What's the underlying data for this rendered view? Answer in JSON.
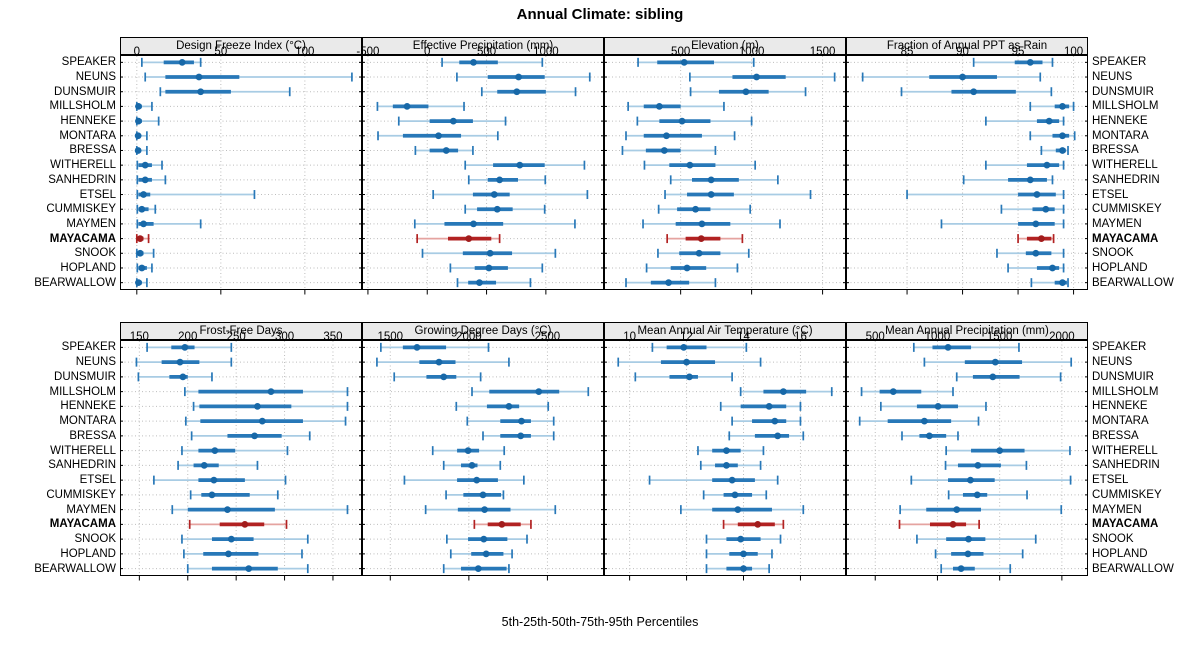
{
  "title": "Annual Climate: sibling",
  "footer": "5th-25th-50th-75th-95th Percentiles",
  "highlight_site": "MAYACAMA",
  "sites": [
    "SPEAKER",
    "NEUNS",
    "DUNSMUIR",
    "MILLSHOLM",
    "HENNEKE",
    "MONTARA",
    "BRESSA",
    "WITHERELL",
    "SANHEDRIN",
    "ETSEL",
    "CUMMISKEY",
    "MAYMEN",
    "MAYACAMA",
    "SNOOK",
    "HOPLAND",
    "BEARWALLOW"
  ],
  "colors": {
    "blue": "#2878B8",
    "blue_light": "#A8CCE4",
    "blue_dot": "#1768A8",
    "red": "#B22222",
    "red_light": "#E5A3A0",
    "red_dot": "#A21C1C",
    "strip_bg": "#EAEAEA",
    "panel_border": "#000000",
    "grid": "#BDBDBD"
  },
  "chart_data": [
    {
      "type": "dotplot-percentiles",
      "row": 0,
      "col": 0,
      "title": "Design Freeze Index (°C)",
      "percentiles": [
        5,
        25,
        50,
        75,
        95
      ],
      "xlim": [
        -10,
        134
      ],
      "ticks": [
        0,
        50,
        100
      ],
      "values": [
        [
          3,
          16,
          27,
          34,
          38
        ],
        [
          5,
          17,
          37,
          61,
          128
        ],
        [
          14,
          17,
          38,
          56,
          91
        ],
        [
          0,
          0.5,
          1,
          3,
          9
        ],
        [
          0,
          0.5,
          1,
          3,
          13
        ],
        [
          0,
          0.3,
          0.8,
          2,
          6
        ],
        [
          0,
          0.3,
          0.8,
          2,
          6
        ],
        [
          0.3,
          1,
          5,
          9,
          15
        ],
        [
          0.3,
          1,
          5,
          9,
          17
        ],
        [
          0.3,
          1,
          4,
          8,
          70
        ],
        [
          0.3,
          1,
          3,
          7,
          11
        ],
        [
          0.3,
          1,
          4,
          10,
          38
        ],
        [
          0,
          0.5,
          2,
          4,
          7
        ],
        [
          0,
          0.5,
          2,
          4,
          10
        ],
        [
          0.3,
          1,
          3,
          6,
          9
        ],
        [
          0,
          0.3,
          1,
          3,
          6
        ]
      ]
    },
    {
      "type": "dotplot-percentiles",
      "row": 0,
      "col": 1,
      "title": "Effective Precipitation (mm)",
      "percentiles": [
        5,
        25,
        50,
        75,
        95
      ],
      "xlim": [
        -550,
        1490
      ],
      "ticks": [
        -500,
        0,
        500,
        1000
      ],
      "values": [
        [
          125,
          270,
          390,
          595,
          970
        ],
        [
          250,
          510,
          770,
          990,
          1370
        ],
        [
          460,
          590,
          755,
          1000,
          1250
        ],
        [
          -420,
          -290,
          -170,
          10,
          310
        ],
        [
          -240,
          20,
          220,
          385,
          660
        ],
        [
          -415,
          -205,
          95,
          285,
          595
        ],
        [
          -100,
          20,
          160,
          260,
          385
        ],
        [
          320,
          555,
          780,
          990,
          1325
        ],
        [
          350,
          510,
          610,
          765,
          995
        ],
        [
          50,
          385,
          565,
          695,
          1350
        ],
        [
          320,
          420,
          590,
          720,
          990
        ],
        [
          -105,
          145,
          390,
          640,
          1245
        ],
        [
          -85,
          175,
          350,
          540,
          610
        ],
        [
          -40,
          300,
          530,
          715,
          1080
        ],
        [
          195,
          400,
          520,
          680,
          970
        ],
        [
          255,
          345,
          440,
          580,
          870
        ]
      ]
    },
    {
      "type": "dotplot-percentiles",
      "row": 0,
      "col": 2,
      "title": "Elevation (m)",
      "percentiles": [
        5,
        25,
        50,
        75,
        95
      ],
      "xlim": [
        -40,
        1665
      ],
      "ticks": [
        500,
        1000,
        1500
      ],
      "values": [
        [
          200,
          335,
          525,
          735,
          1015
        ],
        [
          565,
          865,
          1035,
          1240,
          1585
        ],
        [
          570,
          770,
          960,
          1120,
          1380
        ],
        [
          130,
          240,
          350,
          500,
          805
        ],
        [
          195,
          350,
          510,
          710,
          1000
        ],
        [
          115,
          240,
          400,
          650,
          880
        ],
        [
          90,
          255,
          385,
          500,
          745
        ],
        [
          245,
          420,
          565,
          745,
          1025
        ],
        [
          430,
          580,
          715,
          910,
          1185
        ],
        [
          390,
          545,
          715,
          875,
          1415
        ],
        [
          345,
          475,
          605,
          710,
          990
        ],
        [
          235,
          465,
          650,
          850,
          1200
        ],
        [
          405,
          535,
          645,
          780,
          935
        ],
        [
          340,
          490,
          630,
          780,
          980
        ],
        [
          260,
          430,
          545,
          680,
          900
        ],
        [
          115,
          290,
          415,
          560,
          745
        ]
      ]
    },
    {
      "type": "dotplot-percentiles",
      "row": 0,
      "col": 3,
      "title": "Fraction of Annual PPT as Rain",
      "percentiles": [
        5,
        25,
        50,
        75,
        95
      ],
      "xlim": [
        79.5,
        101.3
      ],
      "ticks": [
        85,
        90,
        95,
        100
      ],
      "values": [
        [
          91,
          94.7,
          96.1,
          97.2,
          98.1
        ],
        [
          81,
          87,
          90,
          93.1,
          97
        ],
        [
          84.5,
          89,
          91,
          94.8,
          98
        ],
        [
          96.1,
          98.3,
          99,
          99.6,
          100
        ],
        [
          92.1,
          96.7,
          97.8,
          98.7,
          99.1
        ],
        [
          96.1,
          98.1,
          99,
          99.6,
          100.1
        ],
        [
          97.1,
          98.4,
          99,
          99.3,
          99.5
        ],
        [
          92.1,
          95.8,
          97.6,
          98.7,
          99.1
        ],
        [
          90.1,
          94.1,
          96.1,
          97.6,
          98.1
        ],
        [
          85,
          95,
          96.7,
          98.4,
          99.1
        ],
        [
          93.5,
          96.3,
          97.5,
          98.3,
          99.1
        ],
        [
          88.1,
          95,
          96.6,
          98.3,
          99.1
        ],
        [
          95,
          95.8,
          97.1,
          98,
          98.2
        ],
        [
          93.1,
          95.7,
          96.6,
          98,
          99.1
        ],
        [
          94.1,
          96.7,
          98.1,
          98.7,
          99.1
        ],
        [
          96.2,
          98.3,
          99,
          99.4,
          99.5
        ]
      ]
    },
    {
      "type": "dotplot-percentiles",
      "row": 1,
      "col": 0,
      "title": "Frost-Free Days",
      "percentiles": [
        5,
        25,
        50,
        75,
        95
      ],
      "xlim": [
        130,
        380
      ],
      "ticks": [
        150,
        200,
        250,
        300,
        350
      ],
      "values": [
        [
          158,
          183,
          197,
          207,
          245
        ],
        [
          147,
          173,
          192,
          212,
          245
        ],
        [
          149,
          181,
          195,
          200,
          225
        ],
        [
          197,
          211,
          286,
          319,
          365
        ],
        [
          206,
          212,
          272,
          307,
          365
        ],
        [
          198,
          213,
          277,
          319,
          363
        ],
        [
          204,
          241,
          269,
          297,
          326
        ],
        [
          194,
          211,
          228,
          249,
          303
        ],
        [
          190,
          206,
          217,
          232,
          272
        ],
        [
          165,
          211,
          227,
          259,
          301
        ],
        [
          203,
          214,
          225,
          264,
          293
        ],
        [
          184,
          200,
          241,
          290,
          365
        ],
        [
          202,
          233,
          259,
          279,
          302
        ],
        [
          194,
          225,
          245,
          268,
          324
        ],
        [
          196,
          216,
          242,
          273,
          318
        ],
        [
          200,
          225,
          263,
          293,
          324
        ]
      ]
    },
    {
      "type": "dotplot-percentiles",
      "row": 1,
      "col": 1,
      "title": "Growing Degree Days (°C)",
      "percentiles": [
        5,
        25,
        50,
        75,
        95
      ],
      "xlim": [
        1320,
        2860
      ],
      "ticks": [
        1500,
        2000,
        2500
      ],
      "values": [
        [
          1440,
          1580,
          1670,
          1855,
          2125
        ],
        [
          1415,
          1685,
          1810,
          1915,
          2255
        ],
        [
          1525,
          1730,
          1840,
          1920,
          2075
        ],
        [
          2020,
          2130,
          2445,
          2575,
          2760
        ],
        [
          1920,
          2115,
          2255,
          2320,
          2505
        ],
        [
          1990,
          2200,
          2335,
          2395,
          2540
        ],
        [
          2090,
          2200,
          2330,
          2395,
          2540
        ],
        [
          1770,
          1925,
          1995,
          2065,
          2225
        ],
        [
          1840,
          1950,
          2020,
          2055,
          2200
        ],
        [
          1590,
          1925,
          2050,
          2185,
          2350
        ],
        [
          1855,
          1965,
          2090,
          2205,
          2220
        ],
        [
          1725,
          1930,
          2100,
          2265,
          2550
        ],
        [
          2035,
          2120,
          2210,
          2330,
          2395
        ],
        [
          1860,
          1995,
          2095,
          2245,
          2370
        ],
        [
          1885,
          2015,
          2110,
          2220,
          2275
        ],
        [
          1840,
          1950,
          2060,
          2240,
          2255
        ]
      ]
    },
    {
      "type": "dotplot-percentiles",
      "row": 1,
      "col": 2,
      "title": "Mean Annual Air Temperature (°C)",
      "percentiles": [
        5,
        25,
        50,
        75,
        95
      ],
      "xlim": [
        9.1,
        17.6
      ],
      "ticks": [
        10,
        12,
        14,
        16
      ],
      "values": [
        [
          10.8,
          11.3,
          11.9,
          12.7,
          14.1
        ],
        [
          9.6,
          11.1,
          12.0,
          13.0,
          14.6
        ],
        [
          10.2,
          11.4,
          12.1,
          12.4,
          13.6
        ],
        [
          13.9,
          14.7,
          15.4,
          16.2,
          17.1
        ],
        [
          13.2,
          13.9,
          14.9,
          15.5,
          16.0
        ],
        [
          13.6,
          14.3,
          15.1,
          15.5,
          16.0
        ],
        [
          13.5,
          14.4,
          15.2,
          15.6,
          16.1
        ],
        [
          12.4,
          12.9,
          13.4,
          13.9,
          14.7
        ],
        [
          12.5,
          13.0,
          13.4,
          13.8,
          14.6
        ],
        [
          10.7,
          12.9,
          13.6,
          14.4,
          15.2
        ],
        [
          12.6,
          13.3,
          13.7,
          14.3,
          14.8
        ],
        [
          11.8,
          12.9,
          13.8,
          15.0,
          16.1
        ],
        [
          13.3,
          13.8,
          14.5,
          15.1,
          15.4
        ],
        [
          12.7,
          13.4,
          13.9,
          14.6,
          15.3
        ],
        [
          12.7,
          13.5,
          14.0,
          14.5,
          15.0
        ],
        [
          12.7,
          13.4,
          14.0,
          14.3,
          14.9
        ]
      ]
    },
    {
      "type": "dotplot-percentiles",
      "row": 1,
      "col": 3,
      "title": "Mean Annual Precipitation (mm)",
      "percentiles": [
        5,
        25,
        50,
        75,
        95
      ],
      "xlim": [
        265,
        2210
      ],
      "ticks": [
        500,
        1000,
        1500,
        2000
      ],
      "values": [
        [
          810,
          960,
          1085,
          1270,
          1655
        ],
        [
          895,
          1220,
          1465,
          1680,
          2075
        ],
        [
          1155,
          1285,
          1445,
          1660,
          1990
        ],
        [
          390,
          535,
          645,
          870,
          1125
        ],
        [
          545,
          835,
          1005,
          1165,
          1390
        ],
        [
          375,
          600,
          895,
          1110,
          1330
        ],
        [
          715,
          855,
          935,
          1070,
          1165
        ],
        [
          1070,
          1270,
          1500,
          1700,
          2065
        ],
        [
          1065,
          1165,
          1325,
          1510,
          1715
        ],
        [
          790,
          1085,
          1265,
          1460,
          2070
        ],
        [
          1090,
          1205,
          1320,
          1400,
          1720
        ],
        [
          700,
          910,
          1155,
          1350,
          1995
        ],
        [
          695,
          940,
          1125,
          1230,
          1335
        ],
        [
          835,
          1070,
          1250,
          1385,
          1790
        ],
        [
          985,
          1110,
          1245,
          1370,
          1685
        ],
        [
          1030,
          1125,
          1190,
          1300,
          1585
        ]
      ]
    }
  ]
}
